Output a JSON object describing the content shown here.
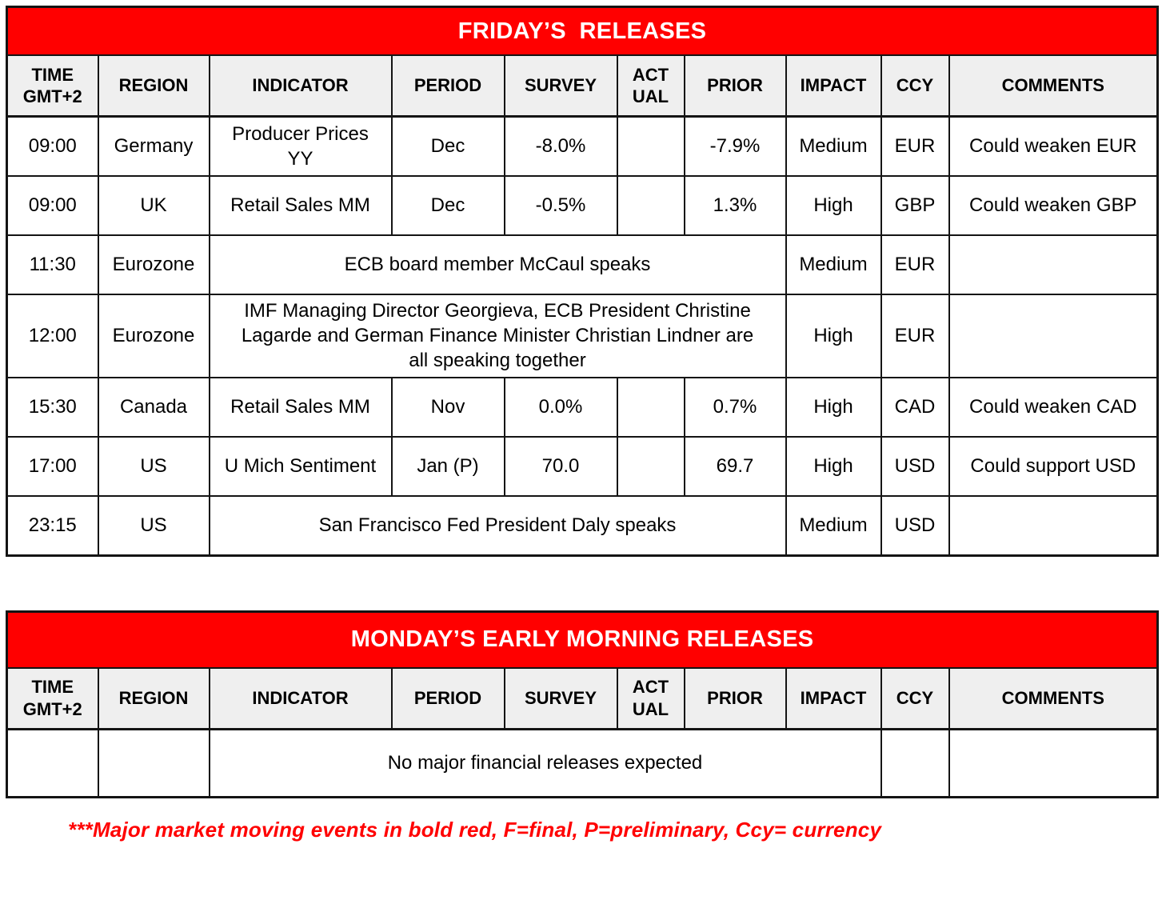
{
  "colors": {
    "accent_red": "#ff0000",
    "header_bg": "#efefef",
    "border": "#141414",
    "title_text": "#ffffff",
    "body_text": "#000000",
    "footnote_red": "#ff0000"
  },
  "tables": [
    {
      "title": "FRIDAY’S  RELEASES",
      "columns": [
        {
          "id": "time",
          "label": "TIME\nGMT+2"
        },
        {
          "id": "region",
          "label": "REGION"
        },
        {
          "id": "indicator",
          "label": "INDICATOR"
        },
        {
          "id": "period",
          "label": "PERIOD"
        },
        {
          "id": "survey",
          "label": "SURVEY"
        },
        {
          "id": "actual",
          "label": "ACT\nUAL"
        },
        {
          "id": "prior",
          "label": "PRIOR"
        },
        {
          "id": "impact",
          "label": "IMPACT"
        },
        {
          "id": "ccy",
          "label": "CCY"
        },
        {
          "id": "comments",
          "label": "COMMENTS"
        }
      ],
      "rows": [
        {
          "cells": [
            {
              "text": "09:00"
            },
            {
              "text": "Germany"
            },
            {
              "text": "Producer Prices\nYY"
            },
            {
              "text": "Dec"
            },
            {
              "text": "-8.0%"
            },
            {
              "text": ""
            },
            {
              "text": "-7.9%"
            },
            {
              "text": "Medium"
            },
            {
              "text": "EUR"
            },
            {
              "text": "Could weaken EUR"
            }
          ]
        },
        {
          "cells": [
            {
              "text": "09:00"
            },
            {
              "text": "UK"
            },
            {
              "text": "Retail Sales MM"
            },
            {
              "text": "Dec"
            },
            {
              "text": "-0.5%"
            },
            {
              "text": ""
            },
            {
              "text": "1.3%"
            },
            {
              "text": "High"
            },
            {
              "text": "GBP"
            },
            {
              "text": "Could weaken GBP"
            }
          ]
        },
        {
          "cells": [
            {
              "text": "11:30"
            },
            {
              "text": "Eurozone"
            },
            {
              "text": "ECB board member McCaul speaks",
              "span": 5
            },
            {
              "text": "Medium"
            },
            {
              "text": "EUR"
            },
            {
              "text": ""
            }
          ]
        },
        {
          "cells": [
            {
              "text": "12:00"
            },
            {
              "text": "Eurozone"
            },
            {
              "text": "IMF Managing Director Georgieva, ECB President Christine\nLagarde and German Finance Minister Christian Lindner  are\nall speaking together",
              "span": 5
            },
            {
              "text": "High"
            },
            {
              "text": "EUR"
            },
            {
              "text": ""
            }
          ]
        },
        {
          "cells": [
            {
              "text": "15:30"
            },
            {
              "text": "Canada"
            },
            {
              "text": "Retail Sales MM"
            },
            {
              "text": "Nov"
            },
            {
              "text": "0.0%"
            },
            {
              "text": ""
            },
            {
              "text": "0.7%"
            },
            {
              "text": "High"
            },
            {
              "text": "CAD"
            },
            {
              "text": "Could weaken CAD"
            }
          ]
        },
        {
          "cells": [
            {
              "text": "17:00"
            },
            {
              "text": "US"
            },
            {
              "text": "U Mich Sentiment"
            },
            {
              "text": "Jan (P)"
            },
            {
              "text": "70.0"
            },
            {
              "text": ""
            },
            {
              "text": "69.7"
            },
            {
              "text": "High"
            },
            {
              "text": "USD"
            },
            {
              "text": "Could support USD"
            }
          ]
        },
        {
          "cells": [
            {
              "text": "23:15"
            },
            {
              "text": "US"
            },
            {
              "text": "San Francisco Fed President Daly speaks",
              "span": 5
            },
            {
              "text": "Medium"
            },
            {
              "text": "USD"
            },
            {
              "text": ""
            }
          ]
        }
      ]
    },
    {
      "title": "MONDAY’S EARLY MORNING RELEASES",
      "columns": [
        {
          "id": "time",
          "label": "TIME\nGMT+2"
        },
        {
          "id": "region",
          "label": "REGION"
        },
        {
          "id": "indicator",
          "label": "INDICATOR"
        },
        {
          "id": "period",
          "label": "PERIOD"
        },
        {
          "id": "survey",
          "label": "SURVEY"
        },
        {
          "id": "actual",
          "label": "ACT\nUAL"
        },
        {
          "id": "prior",
          "label": "PRIOR"
        },
        {
          "id": "impact",
          "label": "IMPACT"
        },
        {
          "id": "ccy",
          "label": "CCY"
        },
        {
          "id": "comments",
          "label": "COMMENTS"
        }
      ],
      "rows": [
        {
          "cells": [
            {
              "text": ""
            },
            {
              "text": ""
            },
            {
              "text": "No major financial releases expected",
              "span": 6
            },
            {
              "text": ""
            },
            {
              "text": ""
            }
          ]
        }
      ]
    }
  ],
  "footnote": "***Major market moving events in bold red, F=final, P=preliminary, Ccy= currency"
}
